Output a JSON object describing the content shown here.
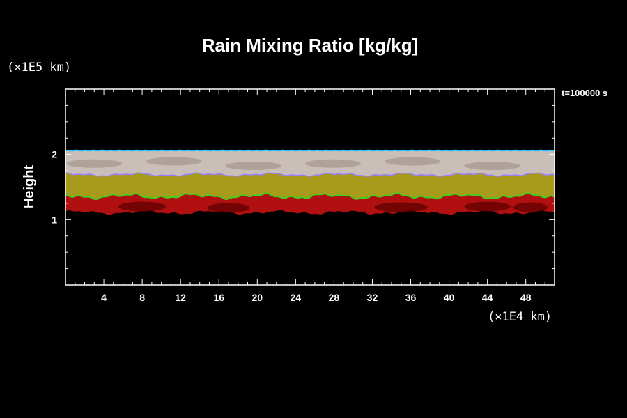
{
  "chart_data": {
    "type": "heatmap",
    "title": "Rain Mixing Ratio [kg/kg]",
    "xunit": "(×1E4 km)",
    "yunit": "(×1E5 km)",
    "ylabel": "Height",
    "time_label": "t=100000 s",
    "xlim": [
      0,
      51
    ],
    "ylim": [
      0,
      3
    ],
    "x_ticks": [
      4,
      8,
      12,
      16,
      20,
      24,
      28,
      32,
      36,
      40,
      44,
      48
    ],
    "y_ticks": [
      1,
      2
    ],
    "x_minor_step": 1,
    "y_minor_step": 0.25,
    "bands": [
      {
        "name": "white",
        "color": "#c9bfb8",
        "top": 2.06,
        "bottom": 1.69
      },
      {
        "name": "yellow",
        "color": "#a89a1a",
        "top": 1.69,
        "bottom": 1.36
      },
      {
        "name": "red",
        "color": "#b01010",
        "top": 1.36,
        "bottom": 1.11
      }
    ],
    "colors": {
      "background": "#000000",
      "frame": "#ffffff",
      "white_band": "#c9bfb8",
      "white_band_dark": "#9a8a80",
      "violet_edge": "#9a80ff",
      "yellow_band": "#a89a1a",
      "green_edge": "#40d020",
      "red_band": "#b01010",
      "dark_red": "#600000",
      "top_edge": "#30c0ff"
    }
  }
}
